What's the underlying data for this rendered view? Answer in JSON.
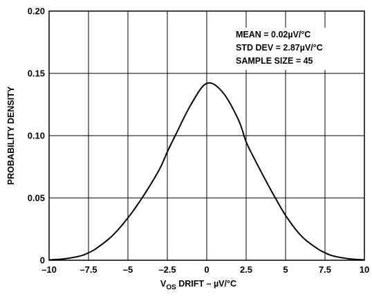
{
  "chart_data": {
    "type": "line",
    "title": "",
    "xlabel_main": "V",
    "xlabel_sub": "OS",
    "xlabel_rest": " DRIFT – µV/°C",
    "ylabel": "PROBABILITY DENSITY",
    "xlim": [
      -10,
      10
    ],
    "ylim": [
      0,
      0.2
    ],
    "x_ticks": [
      -10,
      -7.5,
      -5,
      -2.5,
      0,
      2.5,
      5,
      7.5,
      10
    ],
    "x_tick_labels": [
      "–10",
      "–7.5",
      "–5",
      "–2.5",
      "0",
      "2.5",
      "5",
      "7.5",
      "10"
    ],
    "y_ticks": [
      0,
      0.05,
      0.1,
      0.15,
      0.2
    ],
    "y_tick_labels": [
      "0",
      "0.05",
      "0.10",
      "0.15",
      "0.20"
    ],
    "grid": true,
    "annotations": [
      "MEAN = 0.02µV/°C",
      "STD DEV = 2.87µV/°C",
      "SAMPLE SIZE = 45"
    ],
    "series": [
      {
        "x": [
          -10,
          -9,
          -8,
          -7.5,
          -7,
          -6,
          -5,
          -4,
          -3,
          -2.5,
          -2,
          -1,
          0,
          1,
          2,
          2.5,
          3,
          4,
          5,
          6,
          7,
          7.5,
          8,
          9,
          10
        ],
        "values": [
          0.0003,
          0.0012,
          0.0035,
          0.006,
          0.0095,
          0.0195,
          0.034,
          0.052,
          0.073,
          0.087,
          0.1,
          0.125,
          0.142,
          0.135,
          0.113,
          0.095,
          0.082,
          0.058,
          0.036,
          0.0195,
          0.0095,
          0.006,
          0.0035,
          0.0012,
          0.0003
        ],
        "color": "#000000"
      }
    ]
  }
}
